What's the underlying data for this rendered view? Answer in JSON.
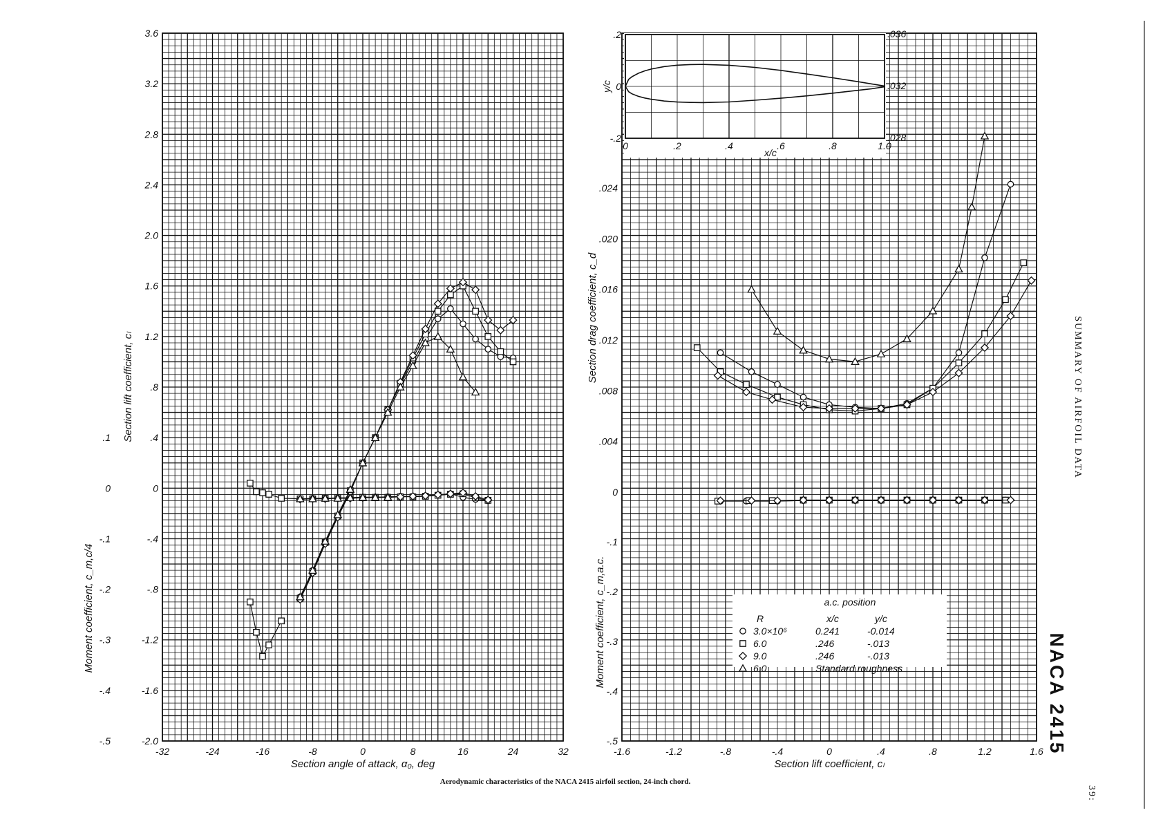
{
  "caption": "Aerodynamic characteristics of the NACA 2415 airfoil section, 24-inch chord.",
  "side_title": "SUMMARY OF AIRFOIL DATA",
  "airfoil_name": "NACA 2415",
  "page_number": "39:",
  "legend": {
    "header": "a.c. position",
    "col_r": "R",
    "col_xc": "x/c",
    "col_yc": "y/c",
    "rows": [
      {
        "symbol": "circle",
        "r": "3.0×10⁶",
        "xc": "0.241",
        "yc": "-0.014"
      },
      {
        "symbol": "square",
        "r": "6.0",
        "xc": ".246",
        "yc": "-.013"
      },
      {
        "symbol": "diamond",
        "r": "9.0",
        "xc": ".246",
        "yc": "-.013"
      },
      {
        "symbol": "triangle",
        "r": "6.0",
        "xc": "Standard roughness",
        "yc": ""
      }
    ]
  },
  "chart_data": [
    {
      "type": "line",
      "panel": "lift-moment",
      "xlabel": "Section angle of attack, α₀, deg",
      "ylabel_left": "Section lift coefficient, cₗ",
      "ylabel_moment": "Moment coefficient, c_m,c/4",
      "xlim": [
        -32,
        32
      ],
      "ylim_cl": [
        -2.0,
        3.6
      ],
      "ylim_cm": [
        -0.5,
        0.1
      ],
      "x_ticks": [
        "-32",
        "-24",
        "-16",
        "-8",
        "0",
        "8",
        "16",
        "24",
        "32"
      ],
      "cl_ticks": [
        "-2.0",
        "-1.6",
        "-1.2",
        "-.8",
        "-.4",
        "0",
        ".4",
        ".8",
        "1.2",
        "1.6",
        "2.0",
        "2.4",
        "2.8",
        "3.2",
        "3.6"
      ],
      "cm_ticks": [
        "-.5",
        "-.4",
        "-.3",
        "-.2",
        "-.1",
        "0",
        ".1"
      ],
      "lift_series": [
        {
          "symbol": "circle",
          "x": [
            -10,
            -8,
            -6,
            -4,
            -2,
            0,
            2,
            4,
            6,
            8,
            10,
            12,
            14,
            16,
            18,
            20,
            22,
            24
          ],
          "y": [
            -0.86,
            -0.65,
            -0.42,
            -0.22,
            -0.02,
            0.2,
            0.4,
            0.62,
            0.82,
            1.0,
            1.18,
            1.34,
            1.42,
            1.3,
            1.18,
            1.1,
            1.04,
            1.03
          ]
        },
        {
          "symbol": "square",
          "x": [
            -10,
            -8,
            -6,
            -4,
            -2,
            0,
            2,
            4,
            6,
            8,
            10,
            12,
            14,
            16,
            18,
            20,
            22,
            24
          ],
          "y": [
            -0.87,
            -0.66,
            -0.43,
            -0.22,
            -0.02,
            0.2,
            0.4,
            0.62,
            0.83,
            1.03,
            1.22,
            1.4,
            1.53,
            1.6,
            1.4,
            1.2,
            1.08,
            1.0
          ]
        },
        {
          "symbol": "diamond",
          "x": [
            -10,
            -8,
            -6,
            -4,
            -2,
            0,
            2,
            4,
            6,
            8,
            10,
            12,
            14,
            16,
            18,
            20,
            22,
            24
          ],
          "y": [
            -0.88,
            -0.67,
            -0.44,
            -0.23,
            -0.03,
            0.2,
            0.4,
            0.62,
            0.84,
            1.05,
            1.26,
            1.46,
            1.58,
            1.63,
            1.57,
            1.33,
            1.25,
            1.33
          ]
        },
        {
          "symbol": "triangle",
          "x": [
            -10,
            -8,
            -6,
            -4,
            -2,
            0,
            2,
            4,
            6,
            8,
            10,
            12,
            14,
            16,
            18
          ],
          "y": [
            -0.86,
            -0.65,
            -0.42,
            -0.21,
            -0.01,
            0.2,
            0.4,
            0.6,
            0.8,
            0.97,
            1.15,
            1.2,
            1.1,
            0.88,
            0.76
          ]
        }
      ],
      "moment_series": [
        {
          "symbol": "circle",
          "x": [
            -10,
            -8,
            -6,
            -4,
            -2,
            0,
            2,
            4,
            6,
            8,
            10,
            12,
            14,
            16,
            18,
            20
          ],
          "y": [
            -0.021,
            -0.02,
            -0.02,
            -0.02,
            -0.019,
            -0.018,
            -0.018,
            -0.017,
            -0.016,
            -0.016,
            -0.015,
            -0.013,
            -0.011,
            -0.018,
            -0.022,
            -0.025
          ]
        },
        {
          "symbol": "square",
          "x": [
            -18,
            -17,
            -16,
            -15,
            -13,
            -10,
            -8,
            -6,
            -4,
            -2,
            0,
            2,
            4,
            6,
            8,
            10,
            12,
            14,
            16,
            18,
            20
          ],
          "y": [
            0.01,
            -0.007,
            -0.009,
            -0.012,
            -0.02,
            -0.021,
            -0.021,
            -0.02,
            -0.019,
            -0.019,
            -0.018,
            -0.018,
            -0.018,
            -0.017,
            -0.017,
            -0.016,
            -0.014,
            -0.012,
            -0.011,
            -0.019,
            -0.024
          ]
        },
        {
          "symbol": "diamond",
          "x": [
            -10,
            -8,
            -6,
            -4,
            -2,
            0,
            2,
            4,
            6,
            8,
            10,
            12,
            14,
            16,
            18,
            20
          ],
          "y": [
            -0.022,
            -0.021,
            -0.021,
            -0.02,
            -0.02,
            -0.019,
            -0.018,
            -0.018,
            -0.017,
            -0.016,
            -0.015,
            -0.013,
            -0.011,
            -0.009,
            -0.016,
            -0.023
          ]
        },
        {
          "symbol": "triangle",
          "x": [
            -10,
            -8,
            -6,
            -4,
            -2,
            0,
            2,
            4
          ],
          "y": [
            -0.021,
            -0.021,
            -0.02,
            -0.02,
            -0.019,
            -0.018,
            -0.018,
            -0.018
          ]
        }
      ],
      "low_alpha_square_cl": {
        "x": [
          -18,
          -17,
          -16,
          -15,
          -13
        ],
        "y": [
          -0.9,
          -1.14,
          -1.33,
          -1.24,
          -1.05
        ]
      }
    },
    {
      "type": "line",
      "panel": "drag-moment",
      "xlabel": "Section lift coefficient, cₗ",
      "ylabel_drag": "Section drag coefficient, c_d",
      "ylabel_moment": "Moment coefficient, c_m,a.c.",
      "xlim": [
        -1.6,
        1.6
      ],
      "ylim_cd": [
        0,
        0.024
      ],
      "ylim_cm": [
        -0.5,
        0
      ],
      "x_ticks": [
        "-1.6",
        "-1.2",
        "-.8",
        "-.4",
        "0",
        ".4",
        ".8",
        "1.2",
        "1.6"
      ],
      "cd_ticks": [
        "0",
        ".004",
        ".008",
        ".012",
        ".016",
        ".020",
        ".024"
      ],
      "cm_ticks": [
        "-.5",
        "-.4",
        "-.3",
        "-.2",
        "-.1"
      ],
      "drag_series": [
        {
          "symbol": "circle",
          "x": [
            -0.84,
            -0.6,
            -0.4,
            -0.2,
            0.0,
            0.2,
            0.4,
            0.6,
            0.8,
            1.0,
            1.2,
            1.4
          ],
          "y": [
            0.011,
            0.0095,
            0.0085,
            0.0075,
            0.0069,
            0.0067,
            0.0066,
            0.007,
            0.0082,
            0.011,
            0.0185,
            0.0243
          ]
        },
        {
          "symbol": "square",
          "x": [
            -1.02,
            -0.84,
            -0.64,
            -0.4,
            -0.2,
            0.0,
            0.2,
            0.4,
            0.6,
            0.8,
            1.0,
            1.2,
            1.36,
            1.5
          ],
          "y": [
            0.0114,
            0.0095,
            0.0085,
            0.0075,
            0.0069,
            0.0065,
            0.0064,
            0.0066,
            0.0069,
            0.0082,
            0.0102,
            0.0125,
            0.0152,
            0.0181
          ]
        },
        {
          "symbol": "diamond",
          "x": [
            -0.86,
            -0.64,
            -0.44,
            -0.2,
            0.0,
            0.2,
            0.4,
            0.6,
            0.8,
            1.0,
            1.2,
            1.4,
            1.56
          ],
          "y": [
            0.0092,
            0.0079,
            0.0073,
            0.0067,
            0.0066,
            0.0066,
            0.0066,
            0.0069,
            0.0079,
            0.0094,
            0.0114,
            0.0139,
            0.0167
          ]
        },
        {
          "symbol": "triangle",
          "x": [
            -0.6,
            -0.4,
            -0.2,
            0.0,
            0.2,
            0.4,
            0.6,
            0.8,
            1.0,
            1.1,
            1.2
          ],
          "y": [
            0.016,
            0.0127,
            0.0112,
            0.0105,
            0.0103,
            0.0109,
            0.0121,
            0.0143,
            0.0176,
            0.0225,
            0.0281
          ]
        }
      ],
      "moment_series": [
        {
          "symbol": "circle",
          "x": [
            -0.84,
            -0.64,
            -0.4,
            -0.2,
            0.0,
            0.2,
            0.4,
            0.6,
            0.8,
            1.0,
            1.2,
            1.36
          ],
          "y": [
            -0.018,
            -0.018,
            -0.018,
            -0.017,
            -0.017,
            -0.017,
            -0.017,
            -0.017,
            -0.017,
            -0.017,
            -0.017,
            -0.016
          ]
        },
        {
          "symbol": "square",
          "x": [
            -0.86,
            -0.62,
            -0.44,
            -0.2,
            0.0,
            0.2,
            0.4,
            0.6,
            0.8,
            1.0,
            1.2,
            1.36
          ],
          "y": [
            -0.018,
            -0.017,
            -0.017,
            -0.016,
            -0.016,
            -0.016,
            -0.016,
            -0.016,
            -0.016,
            -0.016,
            -0.016,
            -0.016
          ]
        },
        {
          "symbol": "diamond",
          "x": [
            -0.84,
            -0.6,
            -0.4,
            -0.2,
            0.0,
            0.2,
            0.4,
            0.6,
            0.8,
            1.0,
            1.2,
            1.4
          ],
          "y": [
            -0.017,
            -0.017,
            -0.017,
            -0.016,
            -0.016,
            -0.016,
            -0.016,
            -0.016,
            -0.016,
            -0.016,
            -0.016,
            -0.016
          ]
        }
      ]
    },
    {
      "type": "line",
      "panel": "airfoil-profile",
      "xlabel": "x/c",
      "ylabel": "y/c",
      "xlim": [
        0,
        1.0
      ],
      "ylim": [
        -0.2,
        0.2
      ],
      "x_ticks": [
        "0",
        ".2",
        ".4",
        ".6",
        ".8",
        "1.0"
      ],
      "y_ticks": [
        "-.2",
        "0",
        ".2"
      ],
      "right_ticks": [
        ".028",
        ".032",
        ".036"
      ],
      "upper": {
        "x": [
          0,
          0.0125,
          0.025,
          0.05,
          0.075,
          0.1,
          0.15,
          0.2,
          0.25,
          0.3,
          0.4,
          0.5,
          0.6,
          0.7,
          0.8,
          0.9,
          0.95,
          1.0
        ],
        "y": [
          0,
          0.0271,
          0.0371,
          0.0506,
          0.06,
          0.067,
          0.0765,
          0.0818,
          0.0843,
          0.0847,
          0.0815,
          0.0734,
          0.0619,
          0.0477,
          0.0334,
          0.018,
          0.0096,
          0.0016
        ]
      },
      "lower": {
        "x": [
          0,
          0.0125,
          0.025,
          0.05,
          0.075,
          0.1,
          0.15,
          0.2,
          0.25,
          0.3,
          0.4,
          0.5,
          0.6,
          0.7,
          0.8,
          0.9,
          0.95,
          1.0
        ],
        "y": [
          0,
          -0.0206,
          -0.0286,
          -0.0384,
          -0.0447,
          -0.0495,
          -0.0565,
          -0.0602,
          -0.0619,
          -0.0623,
          -0.0599,
          -0.0534,
          -0.0455,
          -0.0365,
          -0.0262,
          -0.015,
          -0.0092,
          -0.0016
        ]
      }
    }
  ]
}
